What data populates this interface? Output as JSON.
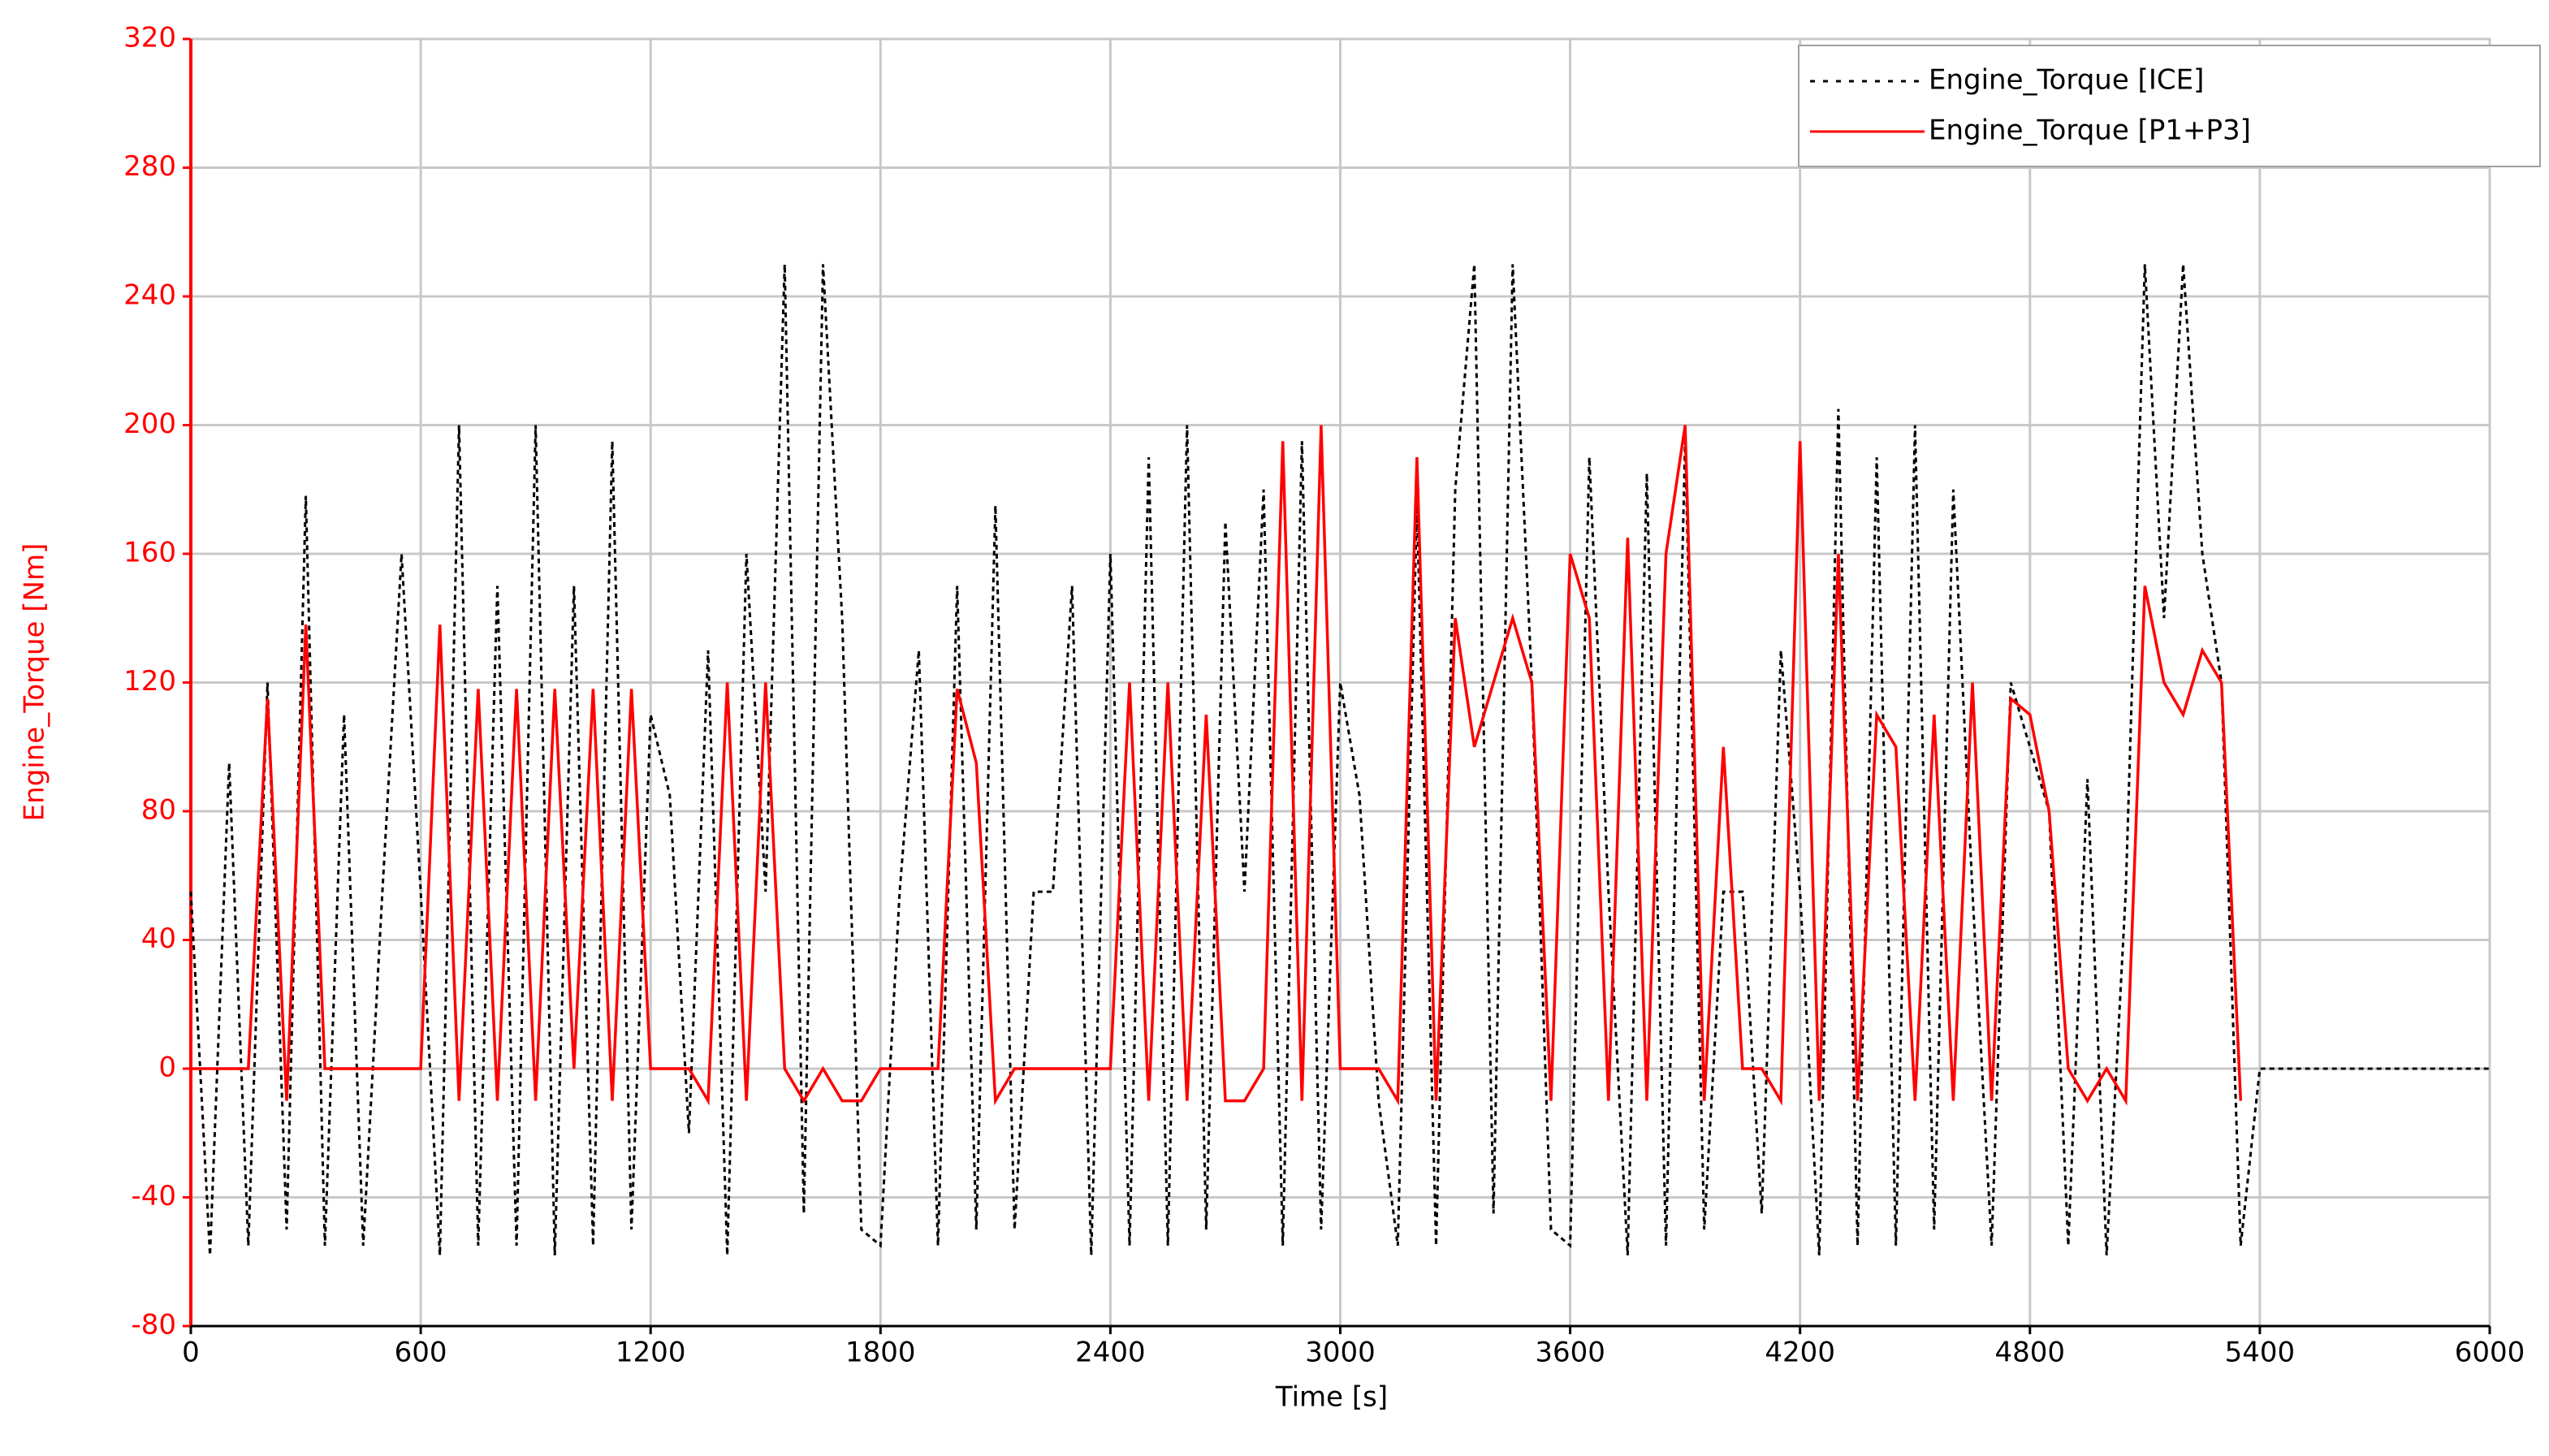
{
  "chart_data": {
    "type": "line",
    "xlabel": "Time [s]",
    "ylabel": "Engine_Torque [Nm]",
    "x": [
      0,
      50,
      100,
      150,
      200,
      250,
      300,
      350,
      400,
      450,
      500,
      550,
      600,
      650,
      700,
      750,
      800,
      850,
      900,
      950,
      1000,
      1050,
      1100,
      1150,
      1200,
      1250,
      1300,
      1350,
      1400,
      1450,
      1500,
      1550,
      1600,
      1650,
      1700,
      1750,
      1800,
      1850,
      1900,
      1950,
      2000,
      2050,
      2100,
      2150,
      2200,
      2250,
      2300,
      2350,
      2400,
      2450,
      2500,
      2550,
      2600,
      2650,
      2700,
      2750,
      2800,
      2850,
      2900,
      2950,
      3000,
      3050,
      3100,
      3150,
      3200,
      3250,
      3300,
      3350,
      3400,
      3450,
      3500,
      3550,
      3600,
      3650,
      3700,
      3750,
      3800,
      3850,
      3900,
      3950,
      4000,
      4050,
      4100,
      4150,
      4200,
      4250,
      4300,
      4350,
      4400,
      4450,
      4500,
      4550,
      4600,
      4650,
      4700,
      4750,
      4800,
      4850,
      4900,
      4950,
      5000,
      5050,
      5100,
      5150,
      5200,
      5250,
      5300,
      5350,
      5400,
      6000
    ],
    "series": [
      {
        "name": "Engine_Torque [ICE]",
        "color": "#000000",
        "dashed": true,
        "values": [
          55,
          -58,
          95,
          -55,
          120,
          -50,
          178,
          -55,
          110,
          -55,
          55,
          160,
          55,
          -58,
          200,
          -55,
          150,
          -55,
          200,
          -58,
          150,
          -55,
          195,
          -50,
          110,
          85,
          -20,
          130,
          -58,
          160,
          55,
          250,
          -45,
          250,
          140,
          -50,
          -55,
          55,
          130,
          -55,
          150,
          -50,
          175,
          -50,
          55,
          55,
          150,
          -58,
          160,
          -55,
          190,
          -55,
          200,
          -50,
          170,
          55,
          180,
          -55,
          195,
          -50,
          120,
          85,
          -10,
          -55,
          175,
          -55,
          180,
          250,
          -45,
          250,
          120,
          -50,
          -55,
          190,
          55,
          -58,
          185,
          -55,
          195,
          -50,
          55,
          55,
          -45,
          130,
          55,
          -58,
          205,
          -55,
          190,
          -55,
          200,
          -50,
          180,
          55,
          -55,
          120,
          100,
          80,
          -55,
          90,
          -58,
          55,
          250,
          140,
          250,
          160,
          120,
          -55,
          0,
          0
        ]
      },
      {
        "name": "Engine_Torque [P1+P3]",
        "color": "#ff0000",
        "dashed": false,
        "values": [
          0,
          0,
          0,
          0,
          115,
          -10,
          138,
          0,
          0,
          0,
          0,
          0,
          0,
          138,
          -10,
          118,
          -10,
          118,
          -10,
          118,
          0,
          118,
          -10,
          118,
          0,
          0,
          0,
          -10,
          120,
          -10,
          120,
          0,
          -10,
          0,
          -10,
          -10,
          0,
          0,
          0,
          0,
          118,
          95,
          -10,
          0,
          0,
          0,
          0,
          0,
          0,
          120,
          -10,
          120,
          -10,
          110,
          -10,
          -10,
          0,
          195,
          -10,
          200,
          0,
          0,
          0,
          -10,
          190,
          -10,
          140,
          100,
          120,
          140,
          120,
          -10,
          160,
          140,
          -10,
          165,
          -10,
          160,
          200,
          -10,
          100,
          0,
          0,
          -10,
          195,
          -10,
          160,
          -10,
          110,
          100,
          -10,
          110,
          -10,
          120,
          -10,
          115,
          110,
          80,
          0,
          -10,
          0,
          -10,
          150,
          120,
          110,
          130,
          120,
          -10,
          null,
          null
        ]
      }
    ],
    "xlim": [
      0,
      6000
    ],
    "xticks": [
      0,
      600,
      1200,
      1800,
      2400,
      3000,
      3600,
      4200,
      4800,
      5400,
      6000
    ],
    "ylim": [
      -80,
      320
    ],
    "yticks": [
      -80,
      -40,
      0,
      40,
      80,
      120,
      160,
      200,
      240,
      280,
      320
    ],
    "grid": true,
    "legend": "upper right",
    "ylabel_color": "#ff0000"
  }
}
